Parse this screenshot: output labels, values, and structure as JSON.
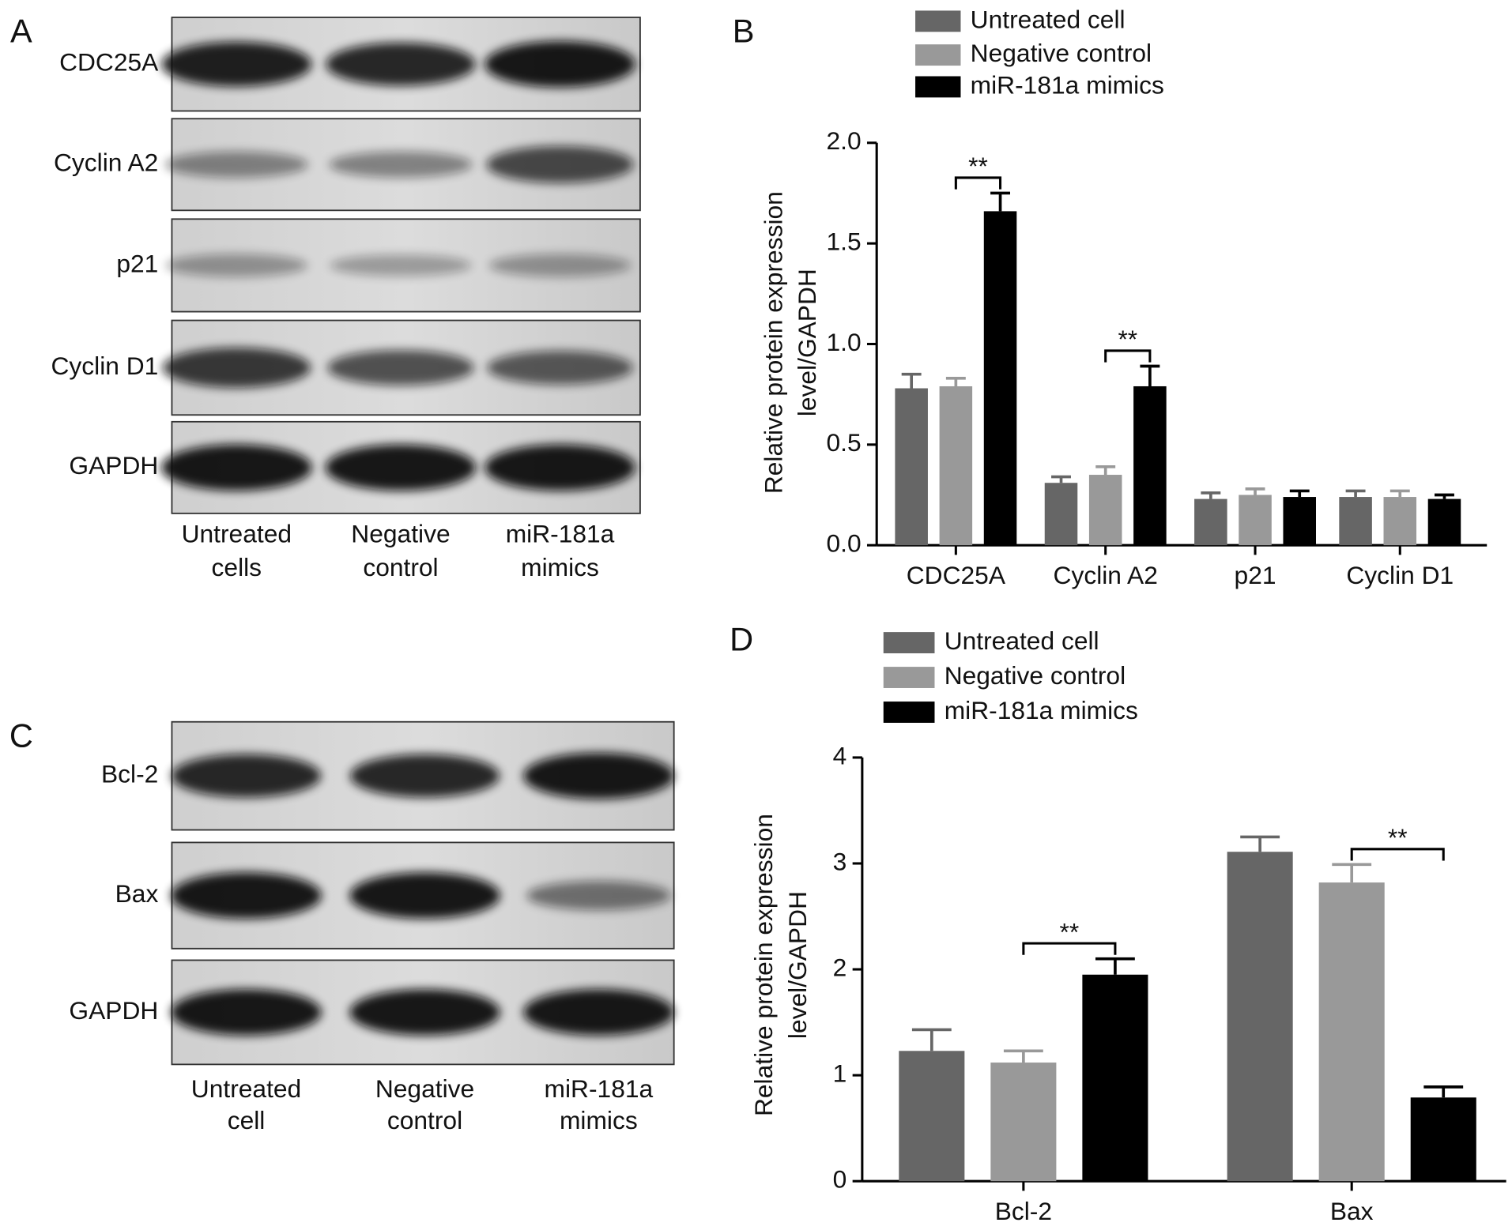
{
  "blots": [
    {
      "panel_label": "A",
      "rows": [
        "CDC25A",
        "Cyclin A2",
        "p21",
        "Cyclin D1",
        "GAPDH"
      ],
      "lanes": [
        [
          "Untreated",
          "cells"
        ],
        [
          "Negative",
          "control"
        ],
        [
          "miR-181a",
          "mimics"
        ]
      ]
    },
    {
      "panel_label": "C",
      "rows": [
        "Bcl-2",
        "Bax",
        "GAPDH"
      ],
      "lanes": [
        [
          "Untreated",
          "cell"
        ],
        [
          "Negative",
          "control"
        ],
        [
          "miR-181a",
          "mimics"
        ]
      ]
    }
  ],
  "chart_data": [
    {
      "type": "bar",
      "panel_label": "B",
      "categories": [
        "CDC25A",
        "Cyclin A2",
        "p21",
        "Cyclin D1"
      ],
      "y_label": [
        "Relative protein expression",
        "level/GAPDH"
      ],
      "series": [
        {
          "name": "Untreated cell",
          "color": "#666666",
          "values": [
            0.78,
            0.31,
            0.23,
            0.24
          ],
          "errors": [
            0.07,
            0.03,
            0.03,
            0.03
          ]
        },
        {
          "name": "Negative control",
          "color": "#999999",
          "values": [
            0.79,
            0.35,
            0.25,
            0.24
          ],
          "errors": [
            0.04,
            0.04,
            0.03,
            0.03
          ]
        },
        {
          "name": "miR-181a mimics",
          "color": "#000000",
          "values": [
            1.66,
            0.79,
            0.24,
            0.23
          ],
          "errors": [
            0.09,
            0.1,
            0.03,
            0.02
          ],
          "significance": [
            "**",
            "**",
            null,
            null
          ]
        }
      ],
      "ylim": [
        0,
        2
      ],
      "yticks": [
        {
          "value": 0,
          "label": "0.0"
        },
        0.5,
        {
          "value": 1,
          "label": "1.0"
        },
        1.5,
        {
          "value": 2,
          "label": "2.0"
        }
      ]
    },
    {
      "type": "bar",
      "panel_label": "D",
      "categories": [
        "Bcl-2",
        "Bax"
      ],
      "y_label": [
        "Relative protein expression",
        "level/GAPDH"
      ],
      "series": [
        {
          "name": "Untreated cell",
          "color": "#666666",
          "values": [
            1.23,
            3.11
          ],
          "errors": [
            0.2,
            0.14
          ]
        },
        {
          "name": "Negative control",
          "color": "#999999",
          "values": [
            1.12,
            2.82
          ],
          "errors": [
            0.11,
            0.17
          ]
        },
        {
          "name": "miR-181a mimics",
          "color": "#000000",
          "values": [
            1.95,
            0.79
          ],
          "errors": [
            0.15,
            0.1
          ],
          "significance": [
            "**",
            "**"
          ]
        }
      ],
      "ylim": [
        0,
        4
      ],
      "yticks": [
        0,
        1,
        2,
        3,
        4
      ]
    }
  ]
}
